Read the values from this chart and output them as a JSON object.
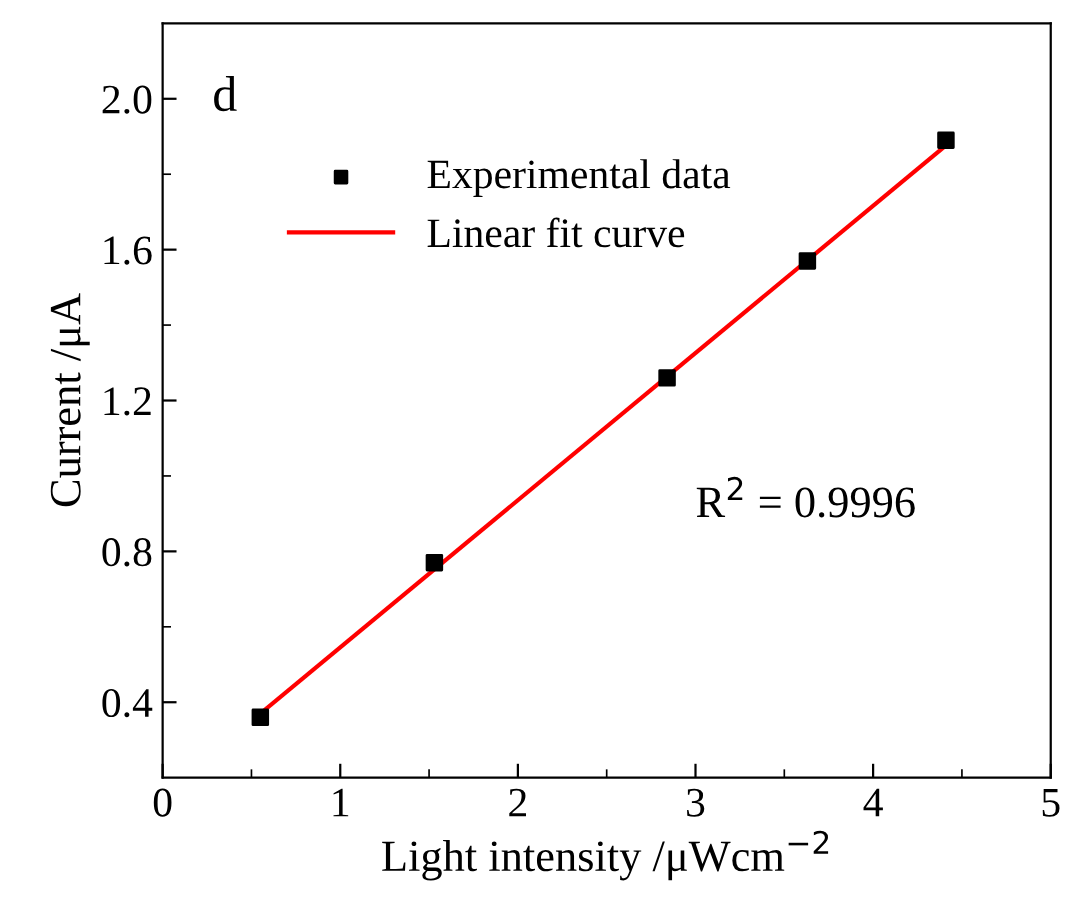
{
  "chart_data": {
    "type": "scatter",
    "xlabel": "Light intensity /μWcm$^{−2}$",
    "ylabel": "Current /μA",
    "series": [
      {
        "name": "Experimental data",
        "color": "#000000",
        "marker": "square",
        "x": [
          0.55,
          1.53,
          2.84,
          3.63,
          4.41
        ],
        "values": [
          0.36,
          0.77,
          1.26,
          1.57,
          1.89
        ]
      },
      {
        "name": "Linear fit curve",
        "type": "line",
        "color": "#ff0000",
        "marker": "none",
        "line_style": "solid",
        "x": [
          0.55,
          4.42
        ],
        "values": [
          0.37,
          1.88
        ]
      }
    ],
    "annotations": [
      "d",
      "R$^{2}$ = 0.9996"
    ],
    "xlim": [
      0,
      5
    ],
    "ylim": [
      0.2,
      2.2
    ],
    "xticks": [
      0,
      {
        "value": 0.5,
        "label": null
      },
      1,
      {
        "value": 1.5,
        "label": null
      },
      2,
      {
        "value": 2.5,
        "label": null
      },
      3,
      {
        "value": 3.5,
        "label": null
      },
      4,
      {
        "value": 4.5,
        "label": null
      },
      5
    ],
    "yticks": [
      {
        "value": 0.4,
        "label": "0.4"
      },
      {
        "value": 0.6,
        "label": null
      },
      {
        "value": 0.8,
        "label": "0.8"
      },
      {
        "value": 1.0,
        "label": null
      },
      {
        "value": 1.2,
        "label": "1.2"
      },
      {
        "value": 1.4,
        "label": null
      },
      {
        "value": 1.6,
        "label": "1.6"
      },
      {
        "value": 1.8,
        "label": null
      },
      {
        "value": 2.0,
        "label": "2.0"
      }
    ],
    "legend": "top left",
    "grid": false
  }
}
